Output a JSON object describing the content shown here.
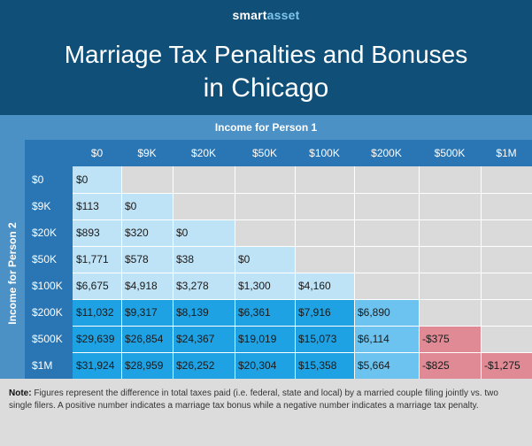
{
  "brand": {
    "part1": "smart",
    "part2": "asset"
  },
  "title_line1": "Marriage Tax Penalties and Bonuses",
  "title_line2": "in Chicago",
  "colors": {
    "header_bg": "#0f4f78",
    "axis_bg": "#4c91c6",
    "header_cell_bg": "#2a75b3",
    "empty": "#dadada",
    "band_light": "#bfe3f6",
    "band_mid": "#6cc3ef",
    "band_dark": "#1ea2e4",
    "penalty": "#e08a95"
  },
  "chart_data": {
    "type": "table",
    "title": "Marriage Tax Penalties and Bonuses in Chicago",
    "xlabel": "Income for Person 1",
    "ylabel": "Income for Person 2",
    "columns": [
      "$0",
      "$9K",
      "$20K",
      "$50K",
      "$100K",
      "$200K",
      "$500K",
      "$1M"
    ],
    "rows": [
      "$0",
      "$9K",
      "$20K",
      "$50K",
      "$100K",
      "$200K",
      "$500K",
      "$1M"
    ],
    "values": [
      [
        "$0",
        "",
        "",
        "",
        "",
        "",
        "",
        ""
      ],
      [
        "$113",
        "$0",
        "",
        "",
        "",
        "",
        "",
        ""
      ],
      [
        "$893",
        "$320",
        "$0",
        "",
        "",
        "",
        "",
        ""
      ],
      [
        "$1,771",
        "$578",
        "$38",
        "$0",
        "",
        "",
        "",
        ""
      ],
      [
        "$6,675",
        "$4,918",
        "$3,278",
        "$1,300",
        "$4,160",
        "",
        "",
        ""
      ],
      [
        "$11,032",
        "$9,317",
        "$8,139",
        "$6,361",
        "$7,916",
        "$6,890",
        "",
        ""
      ],
      [
        "$29,639",
        "$26,854",
        "$24,367",
        "$19,019",
        "$15,073",
        "$6,114",
        "-$375",
        ""
      ],
      [
        "$31,924",
        "$28,959",
        "$26,252",
        "$20,304",
        "$15,358",
        "$5,664",
        "-$825",
        "-$1,275"
      ]
    ]
  },
  "note": {
    "label": "Note:",
    "text": "Figures represent the difference in total taxes paid (i.e. federal, state and local) by a married couple filing jointly vs. two single filers. A positive number indicates a marriage tax bonus while a negative number indicates a marriage tax penalty."
  }
}
